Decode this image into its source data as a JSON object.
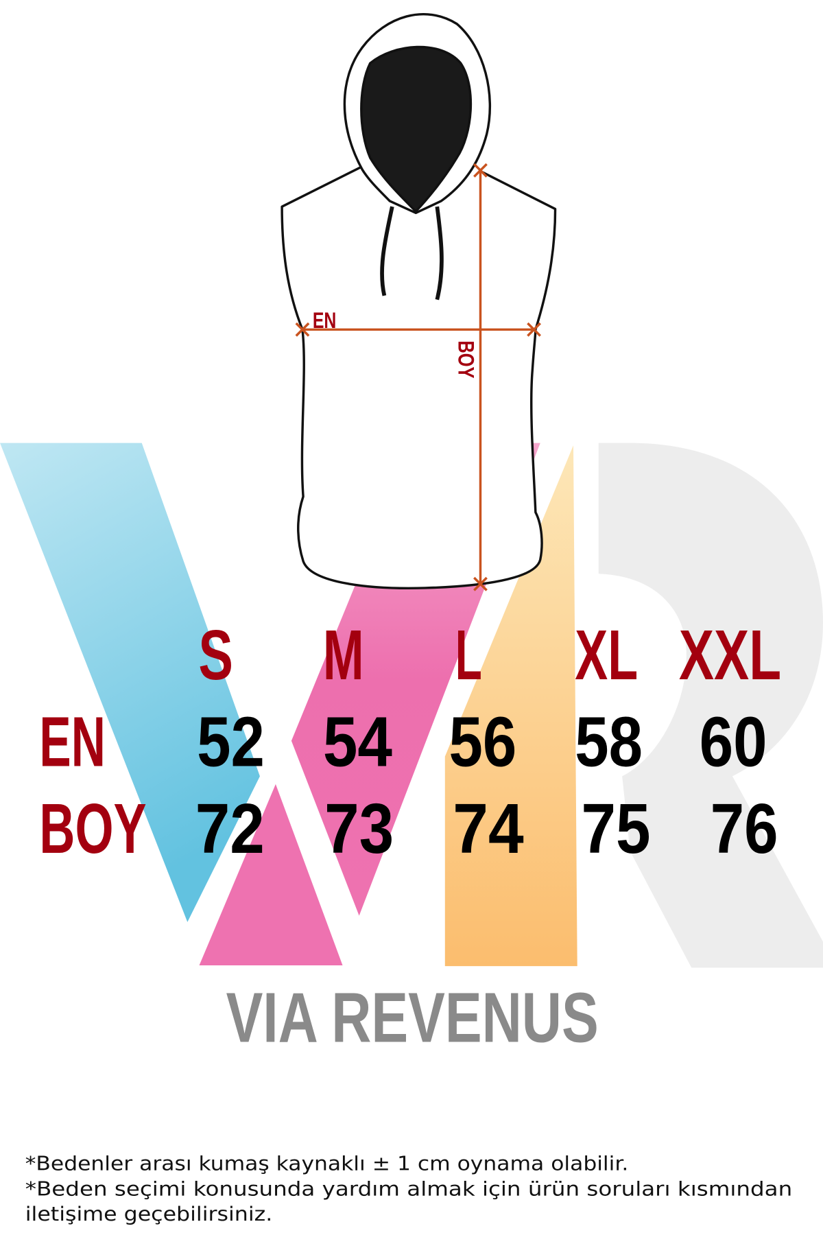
{
  "diagram": {
    "width_label": "EN",
    "length_label": "BOY"
  },
  "size_table": {
    "sizes": [
      "S",
      "M",
      "L",
      "XL",
      "XXL"
    ],
    "rows": [
      {
        "label": "EN",
        "values": [
          "52",
          "54",
          "56",
          "58",
          "60"
        ]
      },
      {
        "label": "BOY",
        "values": [
          "72",
          "73",
          "74",
          "75",
          "76"
        ]
      }
    ]
  },
  "brand": {
    "logo_letters": "VR",
    "name": "VIA REVENUS"
  },
  "notes": [
    "*Bedenler arası kumaş kaynaklı ± 1 cm oynama olabilir.",
    "*Beden seçimi konusunda yardım almak için ürün soruları kısmından",
    "iletişime geçebilirsiniz."
  ],
  "colors": {
    "label_red": "#a3000f",
    "measure_orange": "#c9531f",
    "logo_cyan": "#6fc6e2",
    "logo_pink": "#ee6fae",
    "logo_orange": "#fcc274",
    "logo_grey": "#ededed",
    "brand_grey": "#8a8a8a"
  }
}
